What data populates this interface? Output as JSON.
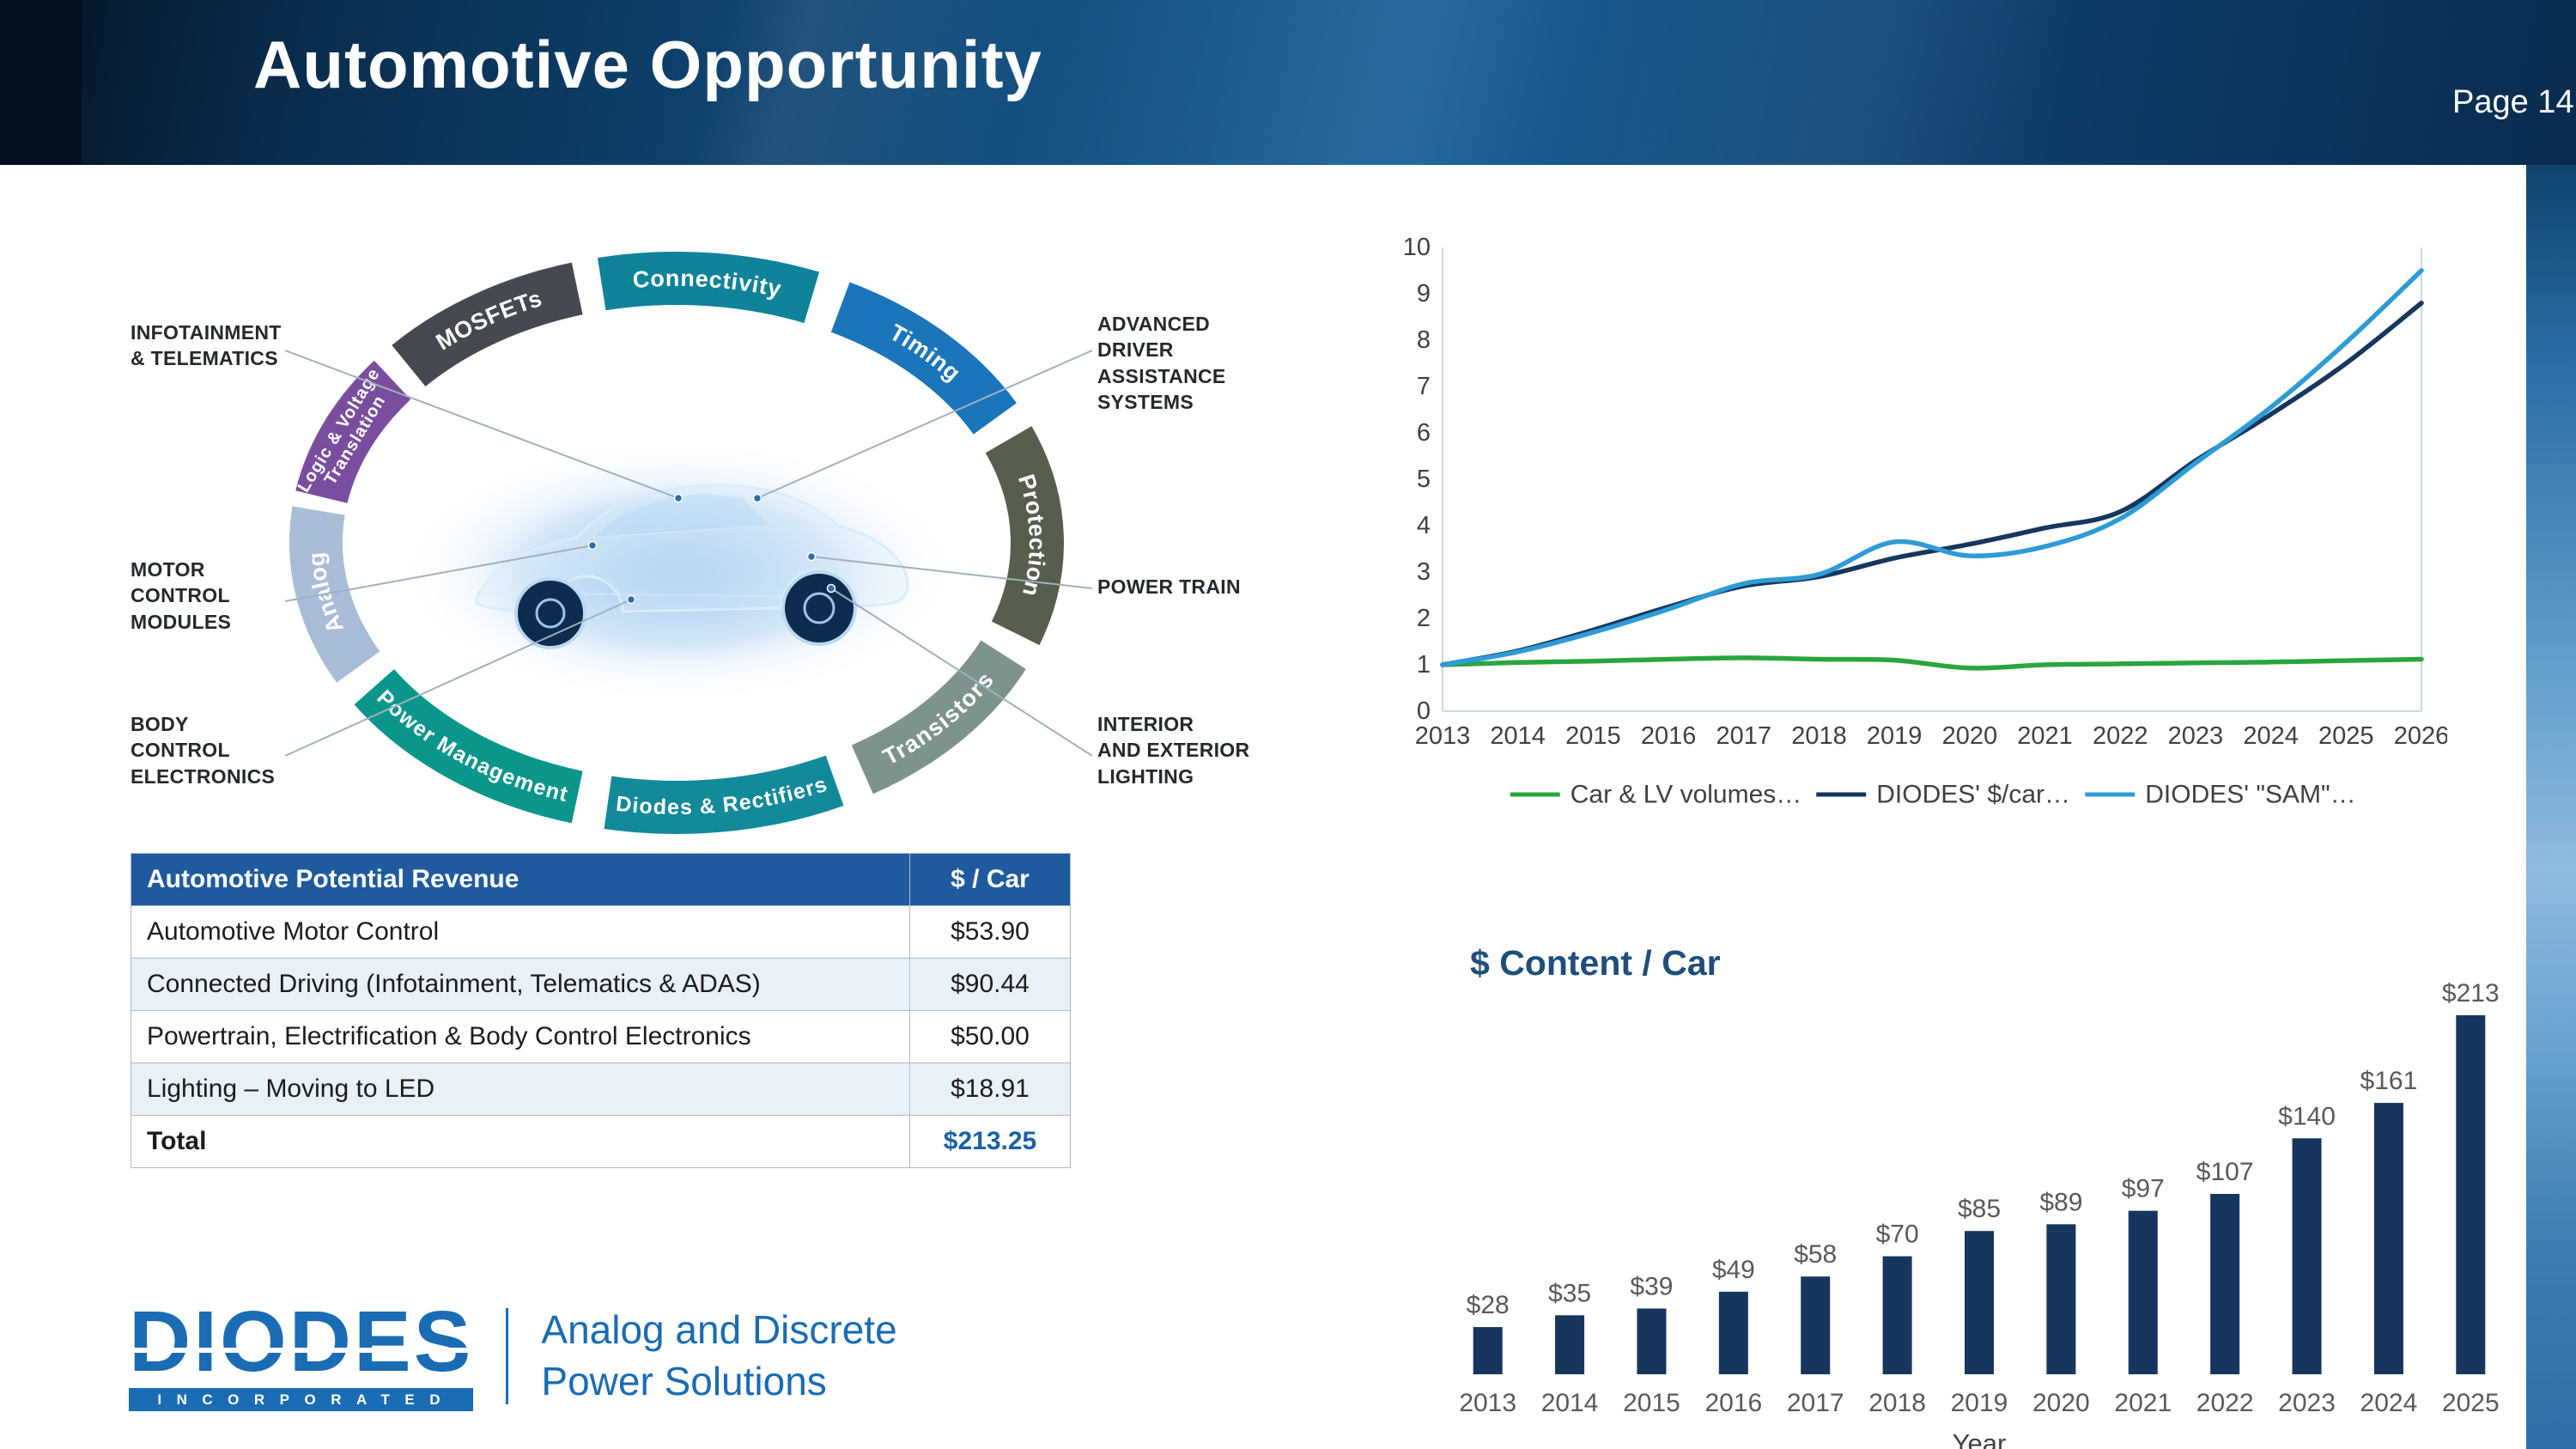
{
  "header": {
    "title": "Automotive Opportunity",
    "page_label": "Page 14"
  },
  "diagram": {
    "label_text_color": "#ffffff",
    "segments": [
      {
        "label": "MOSFETs",
        "color": "#46494f",
        "start": -48,
        "end": -16
      },
      {
        "label": "Connectivity",
        "color": "#0e8399",
        "start": -12,
        "end": 22
      },
      {
        "label": "Timing",
        "color": "#1b75bb",
        "start": 27,
        "end": 62
      },
      {
        "label": "Protection",
        "color": "#575e4d",
        "start": 67,
        "end": 110
      },
      {
        "label": "Transistors",
        "color": "#7e938c",
        "start": 115,
        "end": 149
      },
      {
        "label": "Diodes & Rectifiers",
        "color": "#128a9a",
        "start": 154,
        "end": 191
      },
      {
        "label": "Power Management",
        "color": "#0b968b",
        "start": 196,
        "end": 237
      },
      {
        "label": "Analog",
        "color": "#a9bdd8",
        "start": 242,
        "end": 277
      },
      {
        "label": "Logic & Voltage Translation",
        "color": "#7a4e9e",
        "start": 280,
        "end": 308
      }
    ],
    "callouts": [
      {
        "text": "INFOTAINMENT\n& TELEMATICS"
      },
      {
        "text": "MOTOR\nCONTROL\nMODULES"
      },
      {
        "text": "BODY\nCONTROL\nELECTRONICS"
      },
      {
        "text": "ADVANCED\nDRIVER\nASSISTANCE\nSYSTEMS"
      },
      {
        "text": "POWER TRAIN"
      },
      {
        "text": "INTERIOR\nAND EXTERIOR\nLIGHTING"
      }
    ]
  },
  "table": {
    "header_bg": "#205a9e",
    "alt_row_bg": "#e8f0f8",
    "total_value_color": "#1b5fa8",
    "col_headers": [
      "Automotive Potential Revenue",
      "$ / Car"
    ],
    "rows": [
      [
        "Automotive Motor Control",
        "$53.90"
      ],
      [
        "Connected Driving (Infotainment, Telematics & ADAS)",
        "$90.44"
      ],
      [
        "Powertrain, Electrification & Body Control Electronics",
        "$50.00"
      ],
      [
        "Lighting – Moving to LED",
        "$18.91"
      ]
    ],
    "total_row": [
      "Total",
      "$213.25"
    ]
  },
  "logo": {
    "brand": "DIODES",
    "brand_sub": "INCORPORATED",
    "tagline_line1": "Analog and Discrete",
    "tagline_line2": "Power Solutions",
    "brand_color": "#1a6cb4"
  },
  "chart_data": [
    {
      "type": "line",
      "x": [
        2013,
        2014,
        2015,
        2016,
        2017,
        2018,
        2019,
        2020,
        2021,
        2022,
        2023,
        2024,
        2025,
        2026
      ],
      "series": [
        {
          "name": "Car & LV volumes…",
          "color": "#29a63d",
          "values": [
            1.0,
            1.05,
            1.08,
            1.12,
            1.15,
            1.12,
            1.1,
            0.93,
            1.0,
            1.02,
            1.04,
            1.06,
            1.09,
            1.12
          ]
        },
        {
          "name": "DIODES' $/car…",
          "color": "#17365d",
          "values": [
            1.0,
            1.3,
            1.75,
            2.25,
            2.7,
            2.9,
            3.3,
            3.6,
            3.95,
            4.3,
            5.4,
            6.4,
            7.5,
            8.8
          ]
        },
        {
          "name": "DIODES' \"SAM\"…",
          "color": "#2e9bd6",
          "values": [
            1.0,
            1.28,
            1.7,
            2.2,
            2.75,
            2.95,
            3.65,
            3.35,
            3.55,
            4.15,
            5.35,
            6.55,
            7.95,
            9.5
          ]
        }
      ],
      "ylim": [
        0,
        10
      ],
      "ytick_step": 1,
      "grid": false,
      "legend_position": "bottom"
    },
    {
      "type": "bar",
      "title": "$ Content / Car",
      "title_color": "#1f4e79",
      "xlabel": "Year",
      "categories": [
        "2013",
        "2014",
        "2015",
        "2016",
        "2017",
        "2018",
        "2019",
        "2020",
        "2021",
        "2022",
        "2023",
        "2024",
        "2025"
      ],
      "values": [
        28,
        35,
        39,
        49,
        58,
        70,
        85,
        89,
        97,
        107,
        140,
        161,
        213
      ],
      "bar_labels": [
        "$28",
        "$35",
        "$39",
        "$49",
        "$58",
        "$70",
        "$85",
        "$89",
        "$97",
        "$107",
        "$140",
        "$161",
        "$213"
      ],
      "bar_color": "#17365d",
      "label_color": "#595959"
    }
  ]
}
